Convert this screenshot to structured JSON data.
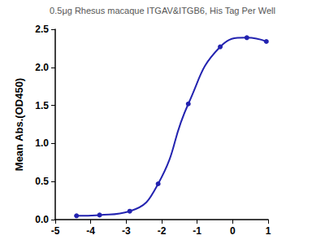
{
  "chart_data": {
    "type": "line",
    "title": "0.5μg Rhesus macaque ITGAV&ITGB6, His Tag Per Well",
    "y_label": "Mean Abs.(OD450)",
    "x": [
      -4.4,
      -3.75,
      -2.9,
      -2.1,
      -1.25,
      -0.35,
      0.4,
      0.95
    ],
    "values": [
      0.05,
      0.06,
      0.11,
      0.47,
      1.52,
      2.27,
      2.39,
      2.34
    ],
    "color": "#2323b0",
    "marker": "circle",
    "line_style": "solid",
    "xlim": [
      -5,
      1
    ],
    "xticks": [
      -5,
      -4,
      -3,
      -2,
      -1,
      0,
      1
    ],
    "ylim": [
      0,
      2.5
    ],
    "yticks": [
      {
        "value": 0,
        "label": "0.0"
      },
      0.5,
      {
        "value": 1,
        "label": "1.0"
      },
      1.5,
      {
        "value": 2,
        "label": "2.0"
      },
      2.5
    ],
    "grid": false
  }
}
